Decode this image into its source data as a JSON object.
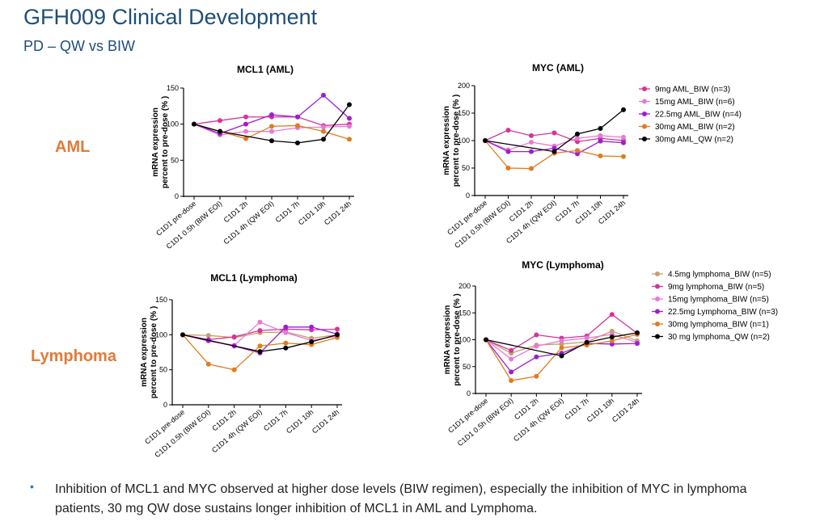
{
  "slide": {
    "title": "GFH009 Clinical Development",
    "subtitle": "PD – QW vs BIW",
    "row_labels": [
      "AML",
      "Lymphoma"
    ],
    "bullet": "Inhibition of MCL1 and MYC observed at higher dose levels (BIW regimen), especially the inhibition of MYC in lymphoma patients, 30 mg QW dose sustains longer inhibition of MCL1 in AML and Lymphoma."
  },
  "chart_data": [
    {
      "type": "line",
      "title": "MCL1 (AML)",
      "ylabel": [
        "mRNA expression",
        "percent to pre-dose (% )"
      ],
      "categories": [
        "C1D1 pre-dose",
        "C1D1 0.5h (BIW EOI)",
        "C1D1 2h",
        "C1D1 4h (QW EOI)",
        "C1D1 7h",
        "C1D1 10h",
        "C1D1 24h"
      ],
      "ylim": [
        0,
        150
      ],
      "yticks": [
        0,
        50,
        100,
        150
      ],
      "legend": false,
      "series": [
        {
          "name": "9mg AML_BIW (n=3)",
          "color": "#d6339a",
          "values": [
            100,
            105,
            110,
            110,
            110,
            98,
            100
          ]
        },
        {
          "name": "15mg AML_BIW (n=6)",
          "color": "#e879d8",
          "values": [
            100,
            85,
            90,
            90,
            95,
            96,
            97
          ]
        },
        {
          "name": "22.5mg AML_BIW (n=4)",
          "color": "#9b1fd1",
          "values": [
            100,
            87,
            100,
            113,
            110,
            140,
            108
          ]
        },
        {
          "name": "30mg AML_BIW (n=2)",
          "color": "#e07b1f",
          "values": [
            100,
            90,
            80,
            97,
            98,
            90,
            79
          ]
        },
        {
          "name": "30mg AML_QW (n=2)",
          "color": "#000000",
          "values": [
            100,
            90,
            null,
            77,
            74,
            79,
            127
          ]
        }
      ]
    },
    {
      "type": "line",
      "title": "MYC (AML)",
      "ylabel": [
        "mRNA expression",
        "percent to pre-dose (% )"
      ],
      "categories": [
        "C1D1 pre-dose",
        "C1D1 0.5h (BIW EOI)",
        "C1D1 2h",
        "C1D1 4h (QW EOI)",
        "C1D1 7h",
        "C1D1 10h",
        "C1D1 24h"
      ],
      "ylim": [
        0,
        200
      ],
      "yticks": [
        0,
        50,
        100,
        150,
        200
      ],
      "legend": true,
      "series": [
        {
          "name": "9mg AML_BIW (n=3)",
          "color": "#d6339a",
          "values": [
            100,
            119,
            109,
            114,
            98,
            104,
            100
          ]
        },
        {
          "name": "15mg AML_BIW (n=6)",
          "color": "#e879d8",
          "values": [
            100,
            83,
            97,
            90,
            104,
            109,
            106
          ]
        },
        {
          "name": "22.5mg AML_BIW (n=4)",
          "color": "#9b1fd1",
          "values": [
            100,
            80,
            80,
            86,
            76,
            99,
            96
          ]
        },
        {
          "name": "30mg AML_BIW (n=2)",
          "color": "#e07b1f",
          "values": [
            100,
            50,
            49,
            77,
            82,
            72,
            71
          ]
        },
        {
          "name": "30mg AML_QW (n=2)",
          "color": "#000000",
          "values": [
            100,
            null,
            null,
            80,
            112,
            122,
            156
          ]
        }
      ]
    },
    {
      "type": "line",
      "title": "MCL1 (Lymphoma)",
      "ylabel": [
        "mRNA expression",
        "percent to pre-dose (% )"
      ],
      "categories": [
        "C1D1 pre-dose",
        "C1D1 0.5h (BIW EOI)",
        "C1D1 2h",
        "C1D1 4h (QW EOI)",
        "C1D1 7h",
        "C1D1 10h",
        "C1D1 24h"
      ],
      "ylim": [
        0,
        150
      ],
      "yticks": [
        0,
        50,
        100,
        150
      ],
      "legend": false,
      "series": [
        {
          "name": "4.5mg lymphoma_BIW (n=5)",
          "color": "#c2a06a",
          "values": [
            100,
            99,
            96,
            103,
            104,
            95,
            100
          ]
        },
        {
          "name": "9mg lymphoma_BIW (n=5)",
          "color": "#d6339a",
          "values": [
            100,
            93,
            97,
            106,
            108,
            107,
            108
          ]
        },
        {
          "name": "15mg lymphoma_BIW (n=5)",
          "color": "#e879d8",
          "values": [
            100,
            91,
            85,
            118,
            103,
            92,
            98
          ]
        },
        {
          "name": "22.5mg Lymphoma_BIW (n=3)",
          "color": "#9b1fd1",
          "values": [
            100,
            92,
            84,
            74,
            111,
            111,
            101
          ]
        },
        {
          "name": "30mg lymphoma_BIW (n=1)",
          "color": "#e07b1f",
          "values": [
            100,
            58,
            50,
            84,
            88,
            86,
            96
          ]
        },
        {
          "name": "30 mg lymphoma_QW (n=2)",
          "color": "#000000",
          "values": [
            100,
            null,
            null,
            76,
            81,
            90,
            100
          ]
        }
      ]
    },
    {
      "type": "line",
      "title": "MYC (Lymphoma)",
      "ylabel": [
        "mRNA expression",
        "percent to pre-dose (% )"
      ],
      "categories": [
        "C1D1 pre-dose",
        "C1D1 0.5h (BIW EOI)",
        "C1D1 2h",
        "C1D1 4h (QW EOI)",
        "C1D1 7h",
        "C1D1 10h",
        "C1D1 24h"
      ],
      "ylim": [
        0,
        200
      ],
      "yticks": [
        0,
        50,
        100,
        150,
        200
      ],
      "legend": true,
      "series": [
        {
          "name": "4.5mg lymphoma_BIW  (n=5)",
          "color": "#c2a06a",
          "values": [
            100,
            75,
            90,
            92,
            96,
            116,
            98
          ]
        },
        {
          "name": "9mg lymphoma_BIW  (n=5)",
          "color": "#d6339a",
          "values": [
            100,
            80,
            109,
            103,
            107,
            147,
            112
          ]
        },
        {
          "name": "15mg lymphoma_BIW  (n=5)",
          "color": "#e879d8",
          "values": [
            100,
            64,
            88,
            98,
            103,
            110,
            95
          ]
        },
        {
          "name": "22.5mg Lymphoma_BIW (n=3)",
          "color": "#9b1fd1",
          "values": [
            100,
            40,
            68,
            75,
            93,
            92,
            93
          ]
        },
        {
          "name": "30mg lymphoma_BIW (n=1)",
          "color": "#e07b1f",
          "values": [
            100,
            24,
            32,
            85,
            90,
            98,
            110
          ]
        },
        {
          "name": "30 mg lymphoma_QW (n=2)",
          "color": "#000000",
          "values": [
            100,
            null,
            null,
            70,
            95,
            105,
            113
          ]
        }
      ]
    }
  ]
}
